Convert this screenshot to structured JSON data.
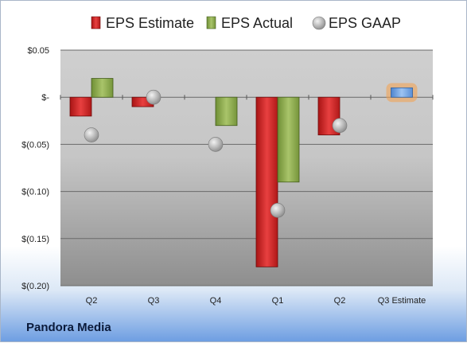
{
  "company": "Pandora Media",
  "colors": {
    "estimate": "#d42a2a",
    "actual": "#8fae4f",
    "gaap": "#b8b8b8",
    "future_estimate": "#6fa2e0",
    "future_glow": "#f5a04a"
  },
  "chart_data": {
    "type": "bar",
    "categories": [
      "Q2",
      "Q3",
      "Q4",
      "Q1",
      "Q2",
      "Q3 Estimate"
    ],
    "series": [
      {
        "name": "EPS Estimate",
        "values": [
          -0.02,
          -0.01,
          null,
          -0.18,
          -0.04,
          0.01
        ]
      },
      {
        "name": "EPS Actual",
        "values": [
          0.02,
          null,
          -0.03,
          -0.09,
          null,
          null
        ]
      },
      {
        "name": "EPS GAAP",
        "values": [
          -0.04,
          0.0,
          -0.05,
          -0.12,
          -0.03,
          null
        ]
      }
    ],
    "legend": [
      "EPS Estimate",
      "EPS Actual",
      "EPS GAAP"
    ],
    "legend_position": "top",
    "y_ticks": [
      {
        "value": 0.05,
        "label": "$0.05"
      },
      {
        "value": 0.0,
        "label": "$-"
      },
      {
        "value": -0.05,
        "label": "$(0.05)"
      },
      {
        "value": -0.1,
        "label": "$(0.10)"
      },
      {
        "value": -0.15,
        "label": "$(0.15)"
      },
      {
        "value": -0.2,
        "label": "$(0.20)"
      }
    ],
    "ylim": [
      -0.2,
      0.05
    ],
    "grid": true
  }
}
